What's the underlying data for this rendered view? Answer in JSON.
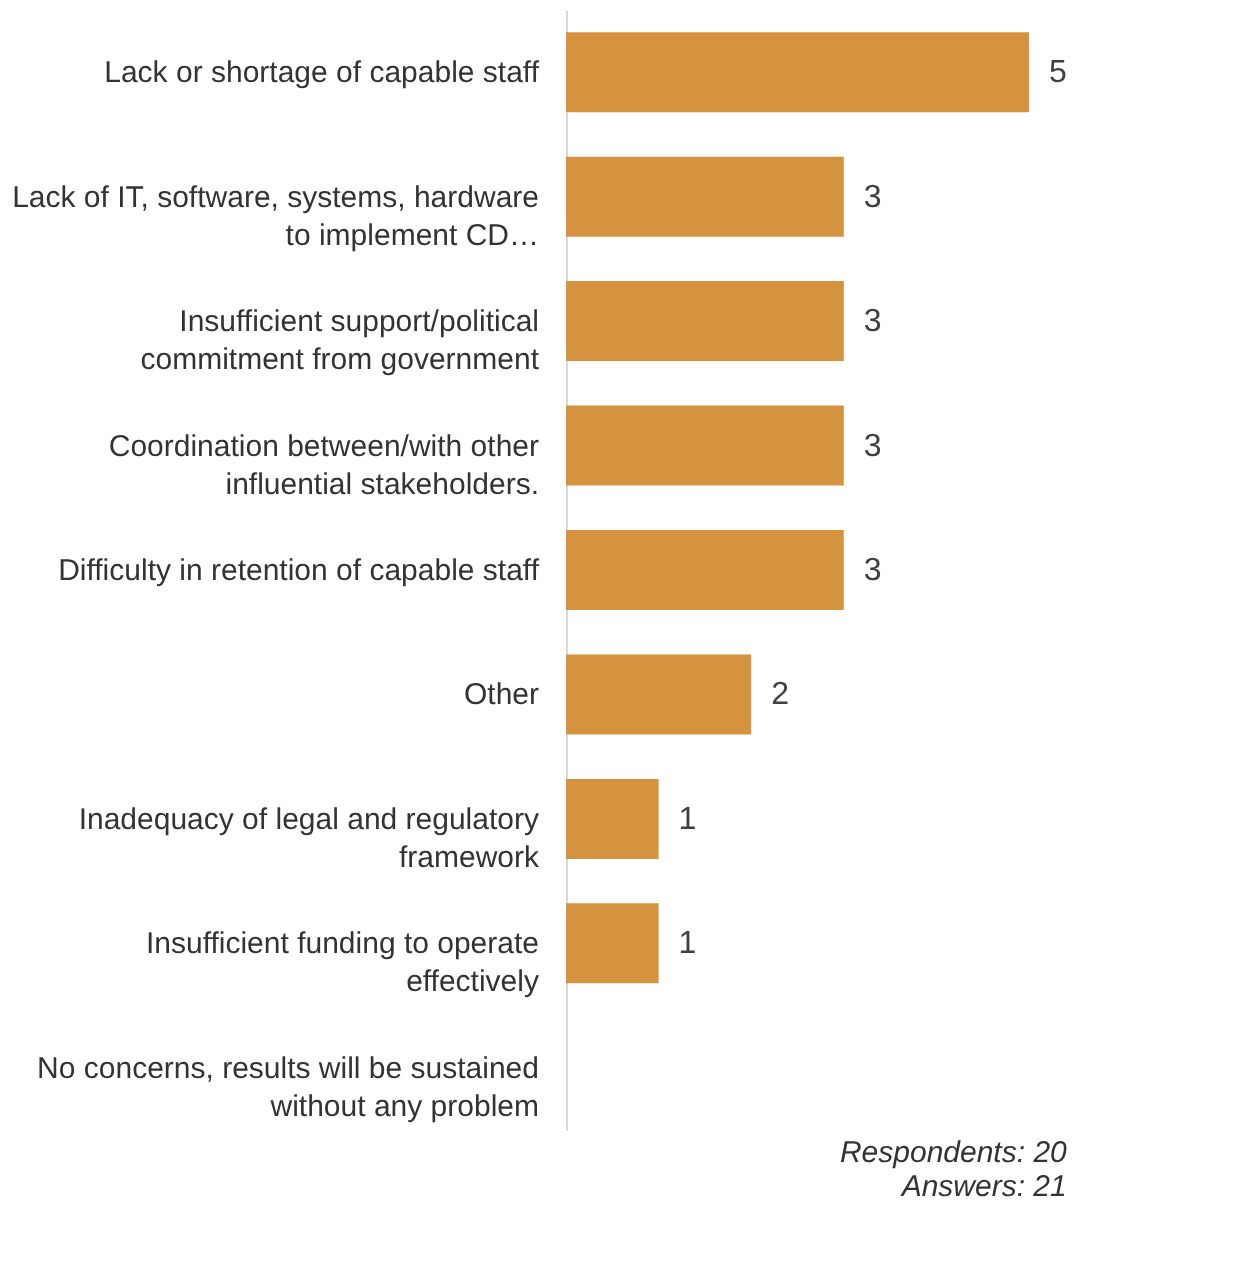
{
  "chart_data": {
    "type": "bar",
    "orientation": "horizontal",
    "categories": [
      "Lack or shortage of capable staff",
      "Lack of IT, software, systems, hardware to implement CD…",
      "Insufficient support/political commitment from government",
      "Coordination between/with other influential stakeholders.",
      "Difficulty in retention of capable staff",
      "Other",
      "Inadequacy of legal and regulatory framework",
      "Insufficient funding to operate effectively",
      "No concerns, results will be sustained without any problem"
    ],
    "values": [
      5,
      3,
      3,
      3,
      3,
      2,
      1,
      1,
      0
    ],
    "value_labels": [
      "5",
      "3",
      "3",
      "3",
      "3",
      "2",
      "1",
      "1",
      null
    ],
    "color": "#d59340",
    "annotations": [
      "Respondents: 20",
      "Answers: 21"
    ]
  }
}
